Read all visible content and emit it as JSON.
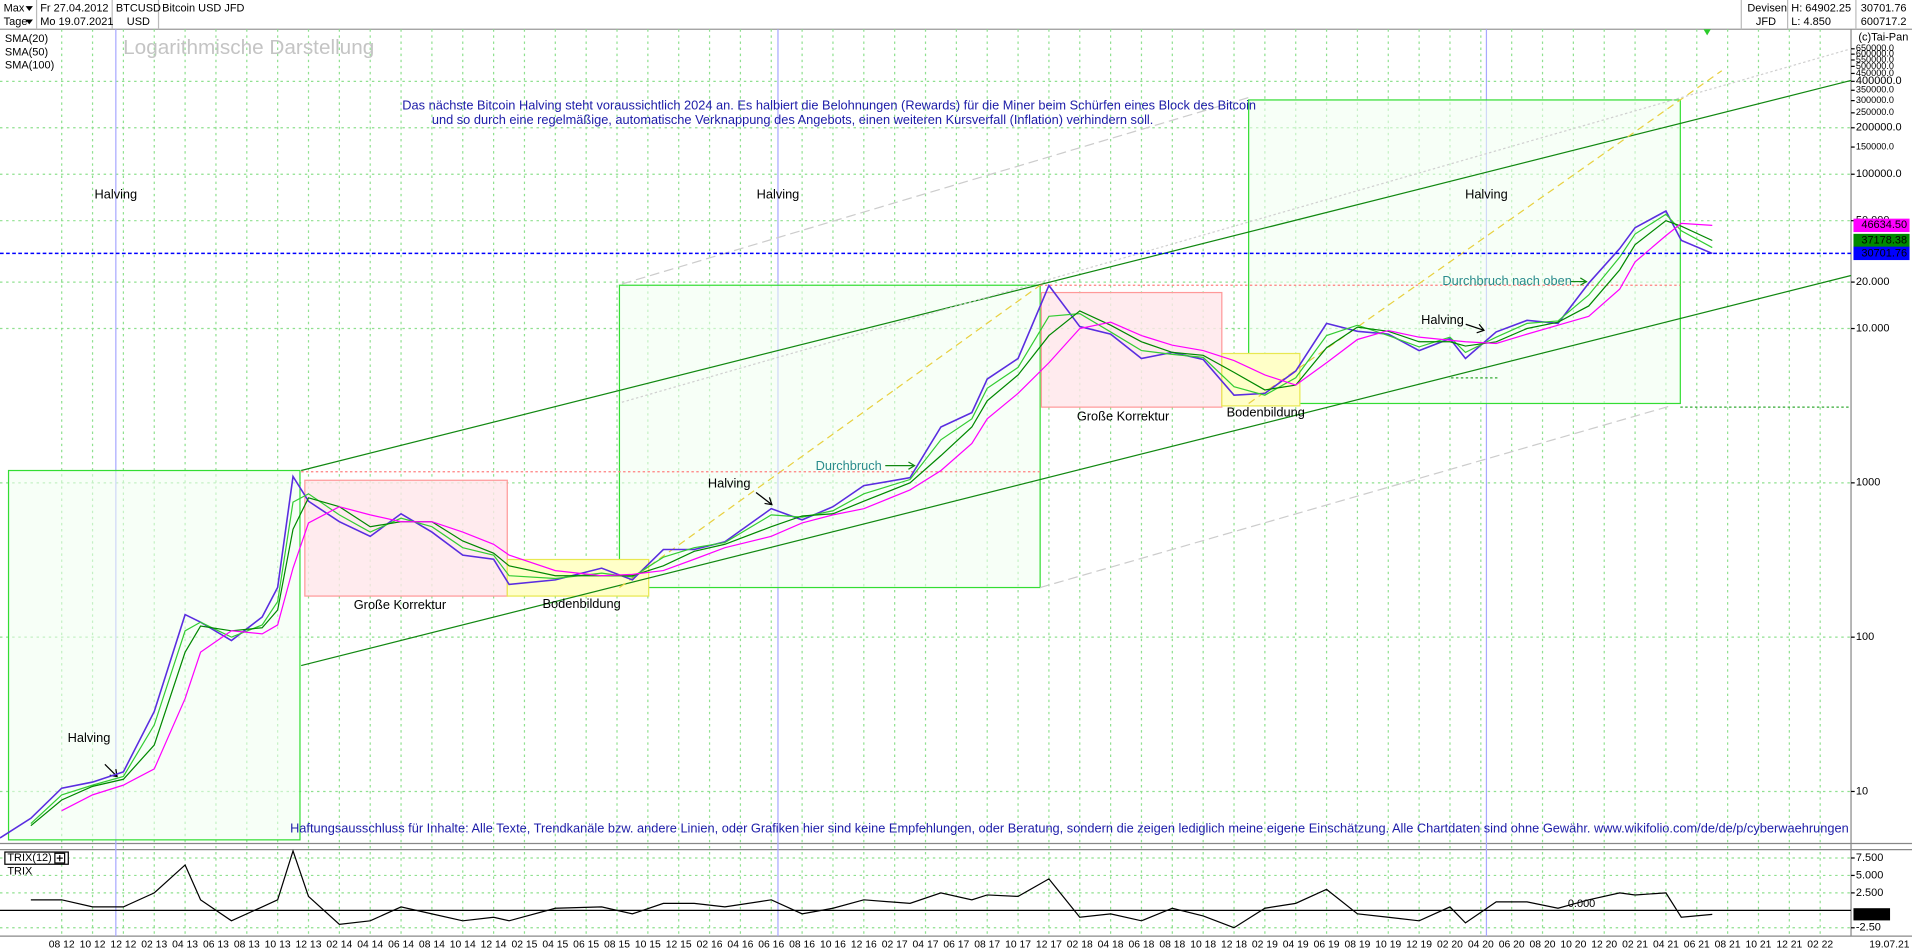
{
  "header": {
    "range": "Max",
    "date_from": "Fr 27.04.2012",
    "period": "Tage",
    "date_to": "Mo 19.07.2021",
    "symbol": "BTCUSD",
    "currency": "USD",
    "name": "Bitcoin USD JFD",
    "market": "Devisen",
    "broker": "JFD",
    "high": "H: 64902.25",
    "low": "L: 4.850",
    "last": "30701.76",
    "prev": "600717.2",
    "copyright": "(c)Tai-Pan"
  },
  "chart_data": [
    {
      "type": "line",
      "log_scale": true,
      "grid": true,
      "legend": "top-left",
      "annotations": [
        "Logarithmische Darstellung",
        "Das nächste Bitcoin Halving steht voraussichtlich 2024 an. Es halbiert die Belohnungen (Rewards) für die Miner beim Schürfen eines Block des Bitcoin",
        "und so durch eine regelmäßige, automatische Verknappung des Angebots, einen weiteren Kursverfall (Inflation) verhindern soll.",
        "Halving",
        "Halving",
        "Halving",
        "Halving",
        "Halving",
        "Halving",
        "Große Korrektur",
        "Große Korrektur",
        "Bodenbildung",
        "Bodenbildung",
        "Durchbruch",
        "Durchbruch nach oben",
        "Haftungsausschluss für Inhalte: Alle Texte, Trendkanäle bzw. andere Linien, oder Grafiken hier sind keine Empfehlungen, oder Beratung, sondern die zeigen lediglich meine eigene Einschätzung. Alle Chartdaten sind ohne Gewähr.  www.wikifolio.com/de/de/p/cyberwaehrungen"
      ],
      "x": [
        "2012-04",
        "2012-06",
        "2012-08",
        "2012-10",
        "2012-12",
        "2013-02",
        "2013-04",
        "2013-05",
        "2013-07",
        "2013-09",
        "2013-10",
        "2013-11",
        "2013-12",
        "2014-02",
        "2014-04",
        "2014-06",
        "2014-08",
        "2014-10",
        "2014-12",
        "2015-01",
        "2015-04",
        "2015-07",
        "2015-09",
        "2015-11",
        "2016-01",
        "2016-03",
        "2016-06",
        "2016-08",
        "2016-10",
        "2016-12",
        "2017-03",
        "2017-05",
        "2017-07",
        "2017-08",
        "2017-10",
        "2017-12",
        "2018-02",
        "2018-04",
        "2018-06",
        "2018-08",
        "2018-10",
        "2018-12",
        "2019-02",
        "2019-04",
        "2019-06",
        "2019-08",
        "2019-10",
        "2019-12",
        "2020-02",
        "2020-03",
        "2020-05",
        "2020-07",
        "2020-09",
        "2020-11",
        "2021-01",
        "2021-02",
        "2021-04",
        "2021-05",
        "2021-07"
      ],
      "xlim": [
        "2012-04",
        "2022-04"
      ],
      "ylim": [
        4.6,
        870000
      ],
      "yticks": [
        10,
        100,
        1000,
        {
          "value": 10000,
          "label": "10.000"
        },
        {
          "value": 20000,
          "label": "20.000"
        },
        {
          "value": 50000,
          "label": "50.000"
        },
        {
          "value": 100000,
          "label": "100000.0"
        },
        {
          "value": 150000,
          "label": "150000.0"
        },
        {
          "value": 200000,
          "label": "200000.0"
        },
        {
          "value": 250000,
          "label": "250000.0"
        },
        {
          "value": 300000,
          "label": "300000.0"
        },
        {
          "value": 350000,
          "label": "350000.0"
        },
        {
          "value": 400000,
          "label": "400000.0"
        },
        {
          "value": 450000,
          "label": "450000.0"
        },
        {
          "value": 500000,
          "label": "500000.0"
        },
        {
          "value": 550000,
          "label": "550000.0"
        },
        {
          "value": 600000,
          "label": "600000.0"
        },
        {
          "value": 650000,
          "label": "650000.0"
        }
      ],
      "series": [
        {
          "name": "BTCUSD",
          "color": "#5a2de0",
          "values": [
            5,
            6.7,
            10.5,
            11.5,
            13.4,
            33,
            140,
            125,
            95,
            135,
            210,
            1100,
            760,
            560,
            450,
            630,
            480,
            340,
            320,
            220,
            235,
            280,
            235,
            370,
            370,
            415,
            680,
            575,
            700,
            960,
            1080,
            2300,
            2850,
            4700,
            6400,
            19000,
            10300,
            9200,
            6400,
            7000,
            6300,
            3700,
            3800,
            5300,
            10800,
            9600,
            9200,
            7200,
            8600,
            6400,
            9500,
            11300,
            10800,
            19700,
            33000,
            45000,
            57800,
            37300,
            30700
          ]
        },
        {
          "name": "SMA(20)",
          "color": "#33cc33",
          "values": [
            null,
            6.2,
            9.5,
            11,
            12.5,
            27,
            110,
            125,
            100,
            120,
            170,
            750,
            850,
            620,
            480,
            590,
            520,
            380,
            340,
            250,
            240,
            260,
            245,
            330,
            380,
            410,
            620,
            600,
            660,
            850,
            1050,
            1900,
            2600,
            4100,
            5600,
            12000,
            12500,
            9500,
            7200,
            6800,
            6500,
            4200,
            3700,
            4800,
            9000,
            10500,
            9000,
            7600,
            8800,
            7000,
            8800,
            10800,
            11200,
            16500,
            29000,
            41000,
            55000,
            43000,
            33500
          ]
        },
        {
          "name": "SMA(50)",
          "color": "#008800",
          "values": [
            null,
            6,
            8.8,
            10.8,
            12,
            20,
            80,
            118,
            110,
            115,
            150,
            500,
            800,
            700,
            520,
            560,
            560,
            420,
            350,
            290,
            250,
            250,
            250,
            290,
            360,
            400,
            520,
            610,
            630,
            760,
            1000,
            1500,
            2300,
            3400,
            5000,
            9000,
            13000,
            10500,
            8200,
            7000,
            6700,
            5200,
            4000,
            4300,
            7500,
            10200,
            9600,
            8200,
            8200,
            7700,
            8200,
            10000,
            11000,
            14000,
            24000,
            35000,
            50000,
            46000,
            37178
          ]
        },
        {
          "name": "SMA(100)",
          "color": "#ff00ff",
          "values": [
            null,
            null,
            7.5,
            9.5,
            11,
            14,
            40,
            80,
            110,
            105,
            120,
            280,
            550,
            700,
            620,
            560,
            560,
            480,
            400,
            340,
            270,
            250,
            255,
            270,
            320,
            380,
            450,
            550,
            620,
            680,
            900,
            1200,
            1800,
            2600,
            3800,
            6000,
            10000,
            11000,
            9000,
            7800,
            7200,
            6200,
            5000,
            4300,
            6000,
            8500,
            9700,
            8800,
            8400,
            8200,
            8000,
            9200,
            10500,
            12000,
            18000,
            27000,
            40000,
            48000,
            46600
          ]
        }
      ],
      "price_tags": [
        {
          "value": 46634.5,
          "label": "46634.50",
          "color": "#ff00ff"
        },
        {
          "value": 37178.38,
          "label": "37178.38",
          "color": "#008800"
        },
        {
          "value": 30701.76,
          "label": "30701.76",
          "color": "#0000ff",
          "dashed_line": true
        }
      ]
    },
    {
      "type": "line",
      "title": "TRIX(12)",
      "grid": true,
      "legend": "top-left",
      "x": [
        "2012-04",
        "2012-06",
        "2012-08",
        "2012-10",
        "2012-12",
        "2013-02",
        "2013-04",
        "2013-05",
        "2013-07",
        "2013-09",
        "2013-10",
        "2013-11",
        "2013-12",
        "2014-02",
        "2014-04",
        "2014-06",
        "2014-08",
        "2014-10",
        "2014-12",
        "2015-01",
        "2015-04",
        "2015-07",
        "2015-09",
        "2015-11",
        "2016-01",
        "2016-03",
        "2016-06",
        "2016-08",
        "2016-10",
        "2016-12",
        "2017-03",
        "2017-05",
        "2017-07",
        "2017-08",
        "2017-10",
        "2017-12",
        "2018-02",
        "2018-04",
        "2018-06",
        "2018-08",
        "2018-10",
        "2018-12",
        "2019-02",
        "2019-04",
        "2019-06",
        "2019-08",
        "2019-10",
        "2019-12",
        "2020-02",
        "2020-03",
        "2020-05",
        "2020-07",
        "2020-09",
        "2020-11",
        "2021-01",
        "2021-02",
        "2021-04",
        "2021-05",
        "2021-07"
      ],
      "xlim": [
        "2012-04",
        "2022-04"
      ],
      "ylim": [
        -3.7,
        8.7
      ],
      "yticks": [
        {
          "value": 7.5,
          "label": "7.500"
        },
        {
          "value": 5,
          "label": "5.000"
        },
        {
          "value": 2.5,
          "label": "2.500"
        },
        {
          "value": -2.5,
          "label": "-2.50"
        }
      ],
      "zero_line": {
        "value": 0,
        "label": "0.000"
      },
      "last_tag": {
        "value": -0.57,
        "label": "-0.57"
      },
      "x_end_label": "19.07.21",
      "xticks": [
        {
          "value": "2012-08",
          "label": "08 12"
        },
        {
          "value": "2012-10",
          "label": "10 12"
        },
        {
          "value": "2012-12",
          "label": "12 12"
        },
        {
          "value": "2013-02",
          "label": "02 13"
        },
        {
          "value": "2013-04",
          "label": "04 13"
        },
        {
          "value": "2013-06",
          "label": "06 13"
        },
        {
          "value": "2013-08",
          "label": "08 13"
        },
        {
          "value": "2013-10",
          "label": "10 13"
        },
        {
          "value": "2013-12",
          "label": "12 13"
        },
        {
          "value": "2014-02",
          "label": "02 14"
        },
        {
          "value": "2014-04",
          "label": "04 14"
        },
        {
          "value": "2014-06",
          "label": "06 14"
        },
        {
          "value": "2014-08",
          "label": "08 14"
        },
        {
          "value": "2014-10",
          "label": "10 14"
        },
        {
          "value": "2014-12",
          "label": "12 14"
        },
        {
          "value": "2015-02",
          "label": "02 15"
        },
        {
          "value": "2015-04",
          "label": "04 15"
        },
        {
          "value": "2015-06",
          "label": "06 15"
        },
        {
          "value": "2015-08",
          "label": "08 15"
        },
        {
          "value": "2015-10",
          "label": "10 15"
        },
        {
          "value": "2015-12",
          "label": "12 15"
        },
        {
          "value": "2016-02",
          "label": "02 16"
        },
        {
          "value": "2016-04",
          "label": "04 16"
        },
        {
          "value": "2016-06",
          "label": "06 16"
        },
        {
          "value": "2016-08",
          "label": "08 16"
        },
        {
          "value": "2016-10",
          "label": "10 16"
        },
        {
          "value": "2016-12",
          "label": "12 16"
        },
        {
          "value": "2017-02",
          "label": "02 17"
        },
        {
          "value": "2017-04",
          "label": "04 17"
        },
        {
          "value": "2017-06",
          "label": "06 17"
        },
        {
          "value": "2017-08",
          "label": "08 17"
        },
        {
          "value": "2017-10",
          "label": "10 17"
        },
        {
          "value": "2017-12",
          "label": "12 17"
        },
        {
          "value": "2018-02",
          "label": "02 18"
        },
        {
          "value": "2018-04",
          "label": "04 18"
        },
        {
          "value": "2018-06",
          "label": "06 18"
        },
        {
          "value": "2018-08",
          "label": "08 18"
        },
        {
          "value": "2018-10",
          "label": "10 18"
        },
        {
          "value": "2018-12",
          "label": "12 18"
        },
        {
          "value": "2019-02",
          "label": "02 19"
        },
        {
          "value": "2019-04",
          "label": "04 19"
        },
        {
          "value": "2019-06",
          "label": "06 19"
        },
        {
          "value": "2019-08",
          "label": "08 19"
        },
        {
          "value": "2019-10",
          "label": "10 19"
        },
        {
          "value": "2019-12",
          "label": "12 19"
        },
        {
          "value": "2020-02",
          "label": "02 20"
        },
        {
          "value": "2020-04",
          "label": "04 20"
        },
        {
          "value": "2020-06",
          "label": "06 20"
        },
        {
          "value": "2020-08",
          "label": "08 20"
        },
        {
          "value": "2020-10",
          "label": "10 20"
        },
        {
          "value": "2020-12",
          "label": "12 20"
        },
        {
          "value": "2021-02",
          "label": "02 21"
        },
        {
          "value": "2021-04",
          "label": "04 21"
        },
        {
          "value": "2021-06",
          "label": "06 21"
        },
        {
          "value": "2021-08",
          "label": "08 21"
        },
        {
          "value": "2021-10",
          "label": "10 21"
        },
        {
          "value": "2021-12",
          "label": "12 21"
        },
        {
          "value": "2022-02",
          "label": "02 22"
        }
      ],
      "series": [
        {
          "name": "TRIX",
          "color": "#000000",
          "values": [
            null,
            1.5,
            1.5,
            0.5,
            0.5,
            2.5,
            6.5,
            1.5,
            -1.5,
            0.5,
            1.5,
            8.5,
            2,
            -2,
            -1.5,
            0.5,
            -0.5,
            -1.5,
            -1,
            -1.5,
            0.3,
            0.5,
            -0.5,
            1,
            1,
            0.5,
            1.5,
            -0.5,
            0.3,
            1.5,
            1,
            2.5,
            1.5,
            2.2,
            2,
            4.5,
            -1,
            -0.5,
            -1.5,
            0.3,
            -0.8,
            -2.5,
            0.3,
            1,
            3,
            -0.5,
            -1,
            -1.5,
            0.5,
            -1.8,
            1.2,
            1.2,
            0.3,
            1.5,
            2.5,
            2.2,
            2.5,
            -1,
            -0.57
          ]
        }
      ]
    }
  ]
}
